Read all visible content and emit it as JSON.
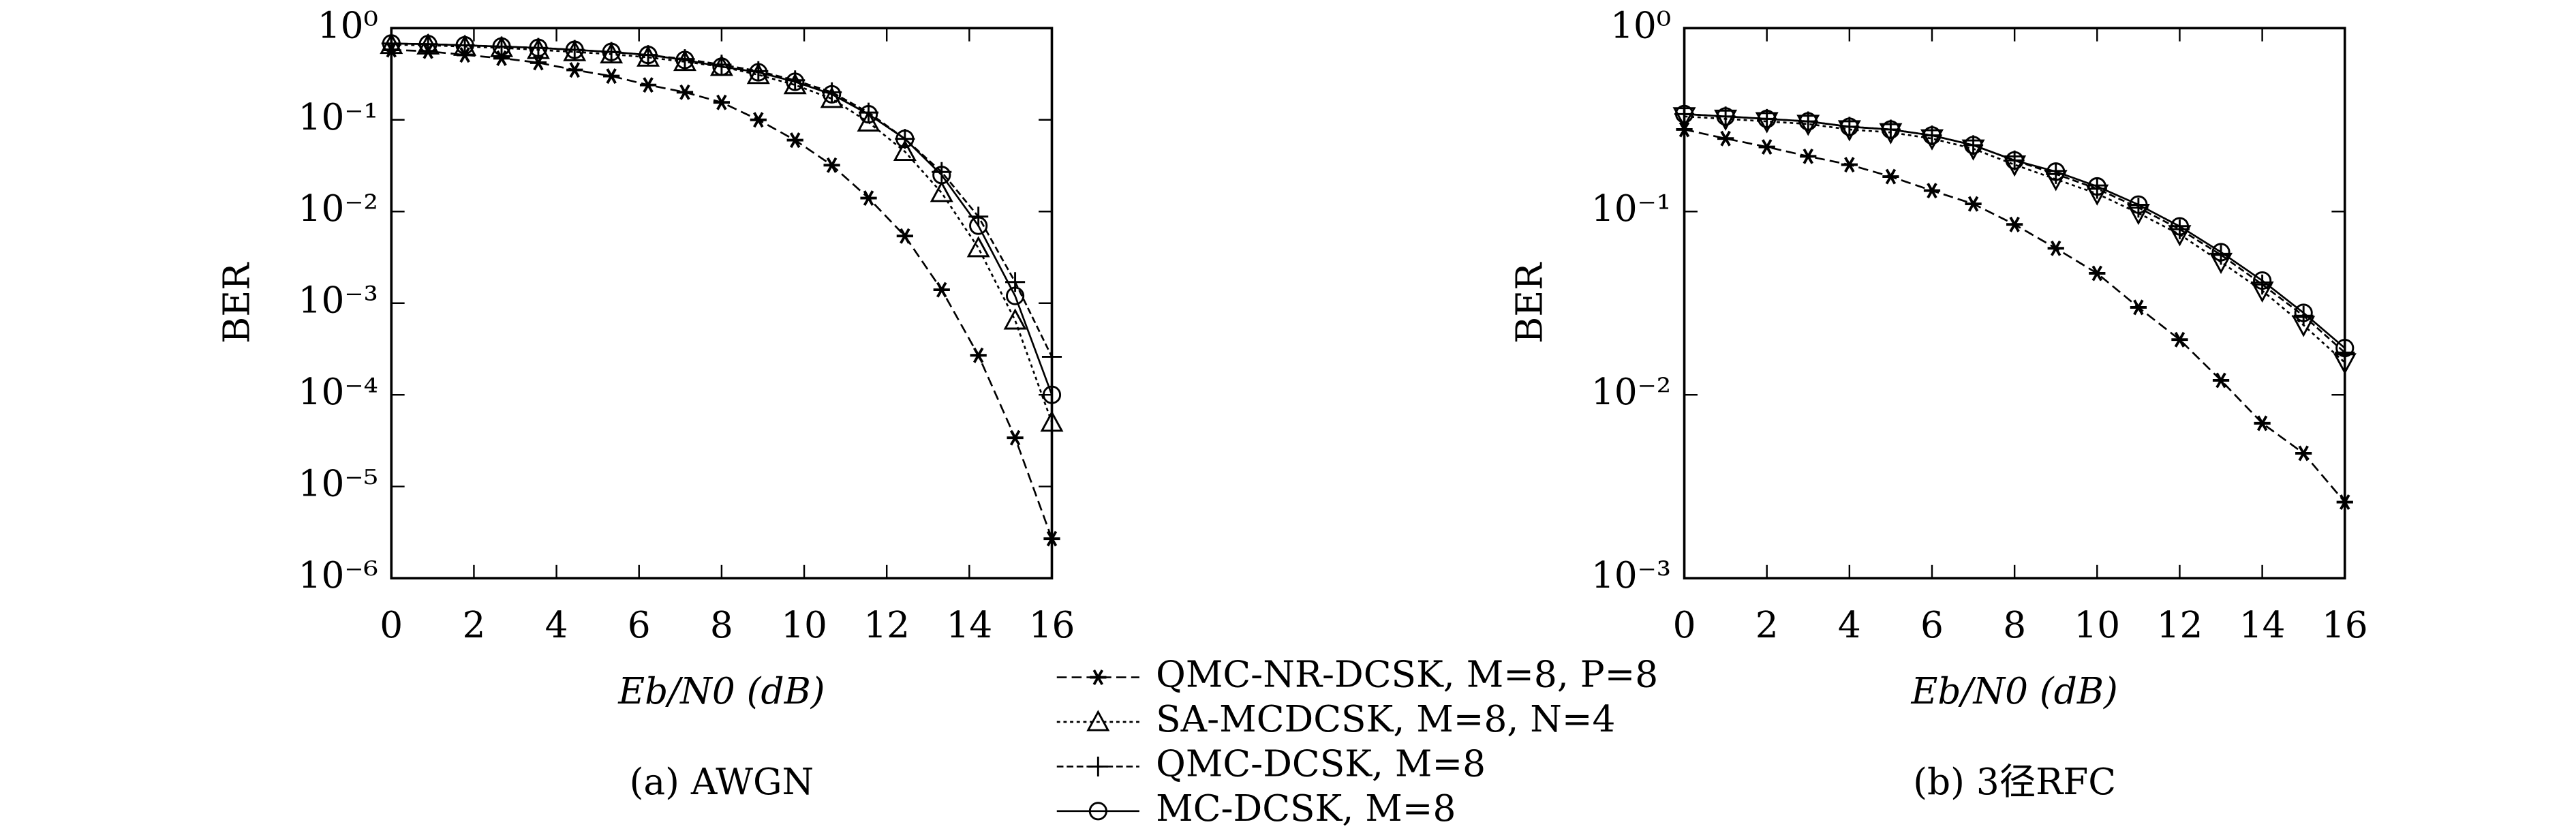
{
  "chart_data": [
    {
      "type": "line",
      "title": "(a) AWGN",
      "xlabel": "Eb/N0 (dB)",
      "ylabel": "BER",
      "log_y": true,
      "x": [
        0,
        0.89,
        1.78,
        2.67,
        3.56,
        4.44,
        5.33,
        6.22,
        7.11,
        8,
        8.89,
        9.78,
        10.67,
        11.56,
        12.44,
        13.33,
        14.22,
        15.11,
        16
      ],
      "xlim": [
        0,
        16
      ],
      "xticks": [
        0,
        2,
        4,
        6,
        8,
        10,
        12,
        14,
        16
      ],
      "ylim": [
        1e-06,
        1
      ],
      "yticks": [
        {
          "value": 1,
          "label": "10⁰"
        },
        {
          "value": 0.1,
          "label": "10⁻¹"
        },
        {
          "value": 0.01,
          "label": "10⁻²"
        },
        {
          "value": 0.001,
          "label": "10⁻³"
        },
        {
          "value": 0.0001,
          "label": "10⁻⁴"
        },
        {
          "value": 1e-05,
          "label": "10⁻⁵"
        },
        {
          "value": 1e-06,
          "label": "10⁻⁶"
        }
      ],
      "series": [
        {
          "name": "QMC-NR-DCSK, M=8, P=8",
          "color": "#000000",
          "marker": "star",
          "dash": "6 3",
          "values": [
            0.58,
            0.56,
            0.51,
            0.47,
            0.42,
            0.35,
            0.3,
            0.24,
            0.2,
            0.155,
            0.1,
            0.06,
            0.032,
            0.014,
            0.0054,
            0.0014,
            0.00027,
            3.4e-05,
            2.7e-06
          ]
        },
        {
          "name": "SA-MCDCSK, M=8, N=4",
          "color": "#000000",
          "marker": "triangle",
          "dash": "2 2",
          "values": [
            0.66,
            0.65,
            0.63,
            0.61,
            0.58,
            0.55,
            0.52,
            0.48,
            0.43,
            0.38,
            0.31,
            0.24,
            0.17,
            0.094,
            0.045,
            0.016,
            0.004,
            0.00065,
            5e-05
          ]
        },
        {
          "name": "QMC-DCSK, M=8",
          "color": "#000000",
          "marker": "plus",
          "dash": "4 2",
          "values": [
            0.68,
            0.67,
            0.65,
            0.63,
            0.61,
            0.58,
            0.55,
            0.51,
            0.46,
            0.4,
            0.34,
            0.27,
            0.2,
            0.12,
            0.062,
            0.027,
            0.0088,
            0.0017,
            0.00026
          ]
        },
        {
          "name": "MC-DCSK, M=8",
          "color": "#000000",
          "marker": "circle",
          "dash": "",
          "values": [
            0.68,
            0.67,
            0.65,
            0.63,
            0.61,
            0.58,
            0.55,
            0.51,
            0.45,
            0.38,
            0.33,
            0.26,
            0.19,
            0.115,
            0.062,
            0.025,
            0.007,
            0.0012,
            0.0001
          ]
        }
      ]
    },
    {
      "type": "line",
      "title": "(b) 3径RFC",
      "xlabel": "Eb/N0 (dB)",
      "ylabel": "BER",
      "log_y": true,
      "x": [
        0,
        1,
        2,
        3,
        4,
        5,
        6,
        7,
        8,
        9,
        10,
        11,
        12,
        13,
        14,
        15,
        16
      ],
      "xlim": [
        0,
        16
      ],
      "xticks": [
        0,
        2,
        4,
        6,
        8,
        10,
        12,
        14,
        16
      ],
      "ylim": [
        0.001,
        1
      ],
      "yticks": [
        {
          "value": 1,
          "label": "10⁰"
        },
        {
          "value": 0.1,
          "label": "10⁻¹"
        },
        {
          "value": 0.01,
          "label": "10⁻²"
        },
        {
          "value": 0.001,
          "label": "10⁻³"
        }
      ],
      "series": [
        {
          "name": "QMC-NR-DCSK, M=8, P=8",
          "color": "#000000",
          "marker": "star",
          "dash": "6 3",
          "values": [
            0.28,
            0.25,
            0.225,
            0.2,
            0.18,
            0.155,
            0.13,
            0.11,
            0.085,
            0.063,
            0.046,
            0.03,
            0.02,
            0.012,
            0.007,
            0.0048,
            0.0026
          ]
        },
        {
          "name": "SA-MCDCSK, M=8, N=4",
          "color": "#000000",
          "marker": "triangle-down",
          "dash": "2 2",
          "values": [
            0.33,
            0.32,
            0.31,
            0.3,
            0.28,
            0.27,
            0.25,
            0.22,
            0.18,
            0.15,
            0.125,
            0.098,
            0.075,
            0.053,
            0.037,
            0.024,
            0.015
          ]
        },
        {
          "name": "QMC-DCSK, M=8",
          "color": "#000000",
          "marker": "plus",
          "dash": "4 2",
          "values": [
            0.34,
            0.33,
            0.32,
            0.31,
            0.29,
            0.28,
            0.26,
            0.23,
            0.19,
            0.16,
            0.133,
            0.105,
            0.08,
            0.058,
            0.04,
            0.027,
            0.017
          ]
        },
        {
          "name": "MC-DCSK, M=8",
          "color": "#000000",
          "marker": "circle",
          "dash": "",
          "values": [
            0.34,
            0.33,
            0.32,
            0.31,
            0.29,
            0.28,
            0.26,
            0.23,
            0.19,
            0.165,
            0.137,
            0.109,
            0.083,
            0.06,
            0.042,
            0.028,
            0.018
          ]
        }
      ]
    }
  ]
}
